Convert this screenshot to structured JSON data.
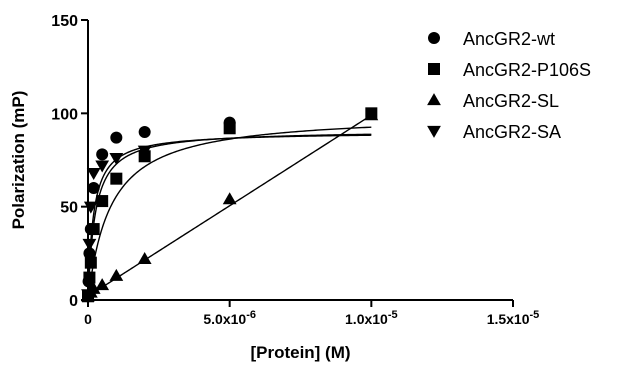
{
  "chart_data": {
    "type": "scatter",
    "title": "",
    "xlabel": "[Protein] (M)",
    "ylabel": "Polarization (mP)",
    "xlim": [
      0,
      1.5e-05
    ],
    "ylim": [
      0,
      150
    ],
    "x_ticks": [
      0,
      5e-06,
      1e-05,
      1.5e-05
    ],
    "x_tick_labels": [
      "0",
      "5.0x10-6",
      "1.0x10-5",
      "1.5x10-5"
    ],
    "y_ticks": [
      0,
      50,
      100,
      150
    ],
    "y_tick_labels": [
      "0",
      "50",
      "100",
      "150"
    ],
    "grid": false,
    "legend_position": "top-right",
    "fit_curves": true,
    "series": [
      {
        "name": "AncGR2-wt",
        "marker": "circle",
        "x": [
          0,
          2e-08,
          5e-08,
          1e-07,
          2e-07,
          5e-07,
          1e-06,
          2e-06,
          5e-06
        ],
        "y": [
          2,
          10,
          25,
          38,
          60,
          78,
          87,
          90,
          95
        ],
        "fit": {
          "bmax": 91,
          "kd": 2.5e-07,
          "base": 0
        }
      },
      {
        "name": "AncGR2-P106S",
        "marker": "square",
        "x": [
          0,
          5e-08,
          1e-07,
          2e-07,
          5e-07,
          1e-06,
          2e-06,
          5e-06,
          1e-05
        ],
        "y": [
          2,
          12,
          20,
          38,
          53,
          65,
          77,
          92,
          100
        ],
        "fit": {
          "bmax": 100,
          "kd": 8e-07,
          "base": 0
        }
      },
      {
        "name": "AncGR2-SL",
        "marker": "triangle-up",
        "x": [
          0,
          1e-07,
          2e-07,
          5e-07,
          1e-06,
          2e-06,
          5e-06,
          1e-05
        ],
        "y": [
          2,
          4,
          6,
          8,
          13,
          22,
          54,
          99
        ],
        "fit": {
          "type": "linear",
          "slope": 9700000.0,
          "intercept": 2
        }
      },
      {
        "name": "AncGR2-SA",
        "marker": "triangle-down",
        "x": [
          0,
          5e-08,
          1e-07,
          2e-07,
          5e-07,
          1e-06,
          2e-06
        ],
        "y": [
          3,
          30,
          50,
          68,
          72,
          76,
          80
        ],
        "fit": {
          "bmax": 88,
          "kd": 2e-07,
          "base": 2
        }
      }
    ]
  }
}
